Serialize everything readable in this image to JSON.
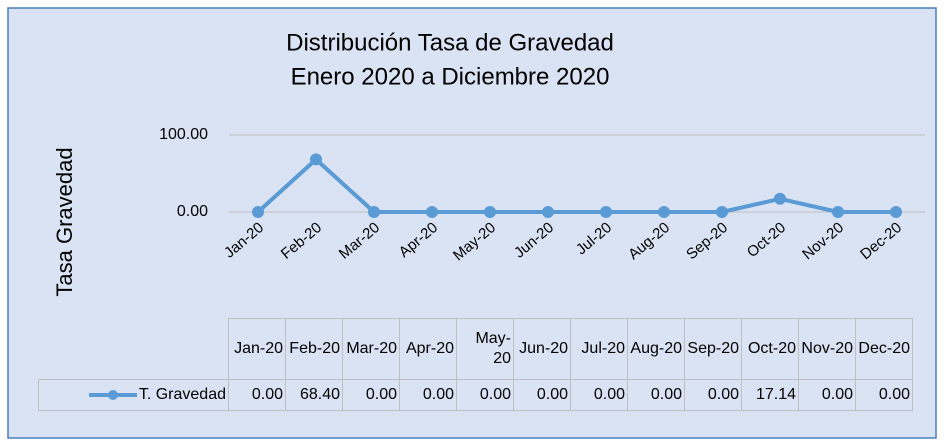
{
  "chart_data": {
    "type": "line",
    "title": "Distribución Tasa de Gravedad",
    "subtitle": "Enero 2020 a Diciembre 2020",
    "y_label": "Tasa Gravedad",
    "categories": [
      "Jan-20",
      "Feb-20",
      "Mar-20",
      "Apr-20",
      "May-20",
      "Jun-20",
      "Jul-20",
      "Aug-20",
      "Sep-20",
      "Oct-20",
      "Nov-20",
      "Dec-20"
    ],
    "series": [
      {
        "name": "T. Gravedad",
        "color": "#5b9bd5",
        "values": [
          0,
          68.4,
          0,
          0,
          0,
          0,
          0,
          0,
          0,
          17.14,
          0,
          0
        ],
        "value_labels": [
          "0.00",
          "68.40",
          "0.00",
          "0.00",
          "0.00",
          "0.00",
          "0.00",
          "0.00",
          "0.00",
          "17.14",
          "0.00",
          "0.00"
        ]
      }
    ],
    "ylim": [
      0,
      100
    ],
    "yticks": [
      {
        "value": 0,
        "label": "0.00"
      },
      {
        "value": 100,
        "label": "100.00"
      }
    ],
    "grid": true
  }
}
